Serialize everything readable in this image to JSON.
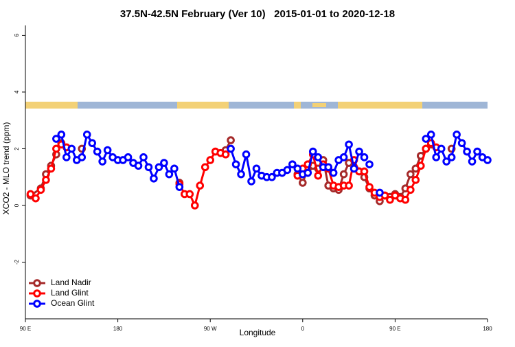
{
  "chart_data": {
    "type": "line",
    "title": "37.5N-42.5N February (Ver 10)   2015-01-01 to 2020-12-18",
    "xlabel": "Longitude",
    "ylabel": "XCO2 - MLO trend (ppm)",
    "xlim": [
      90,
      540
    ],
    "ylim": [
      -4,
      6.35
    ],
    "xticks": [
      {
        "value": 90,
        "label": "90 E"
      },
      {
        "value": 180,
        "label": "180"
      },
      {
        "value": 270,
        "label": "90 W"
      },
      {
        "value": 360,
        "label": "0"
      },
      {
        "value": 450,
        "label": "90 E"
      },
      {
        "value": 540,
        "label": "180"
      }
    ],
    "yticks": [
      -2,
      0,
      2,
      4,
      6
    ],
    "legend": "bottomleft",
    "series": [
      {
        "name": "Land Nadir",
        "color": "#a52a2a",
        "x": [
          95,
          105,
          110,
          115,
          120,
          125,
          135,
          145,
          150,
          240,
          245,
          285,
          290,
          295,
          355,
          360,
          365,
          370,
          375,
          380,
          385,
          390,
          395,
          400,
          405,
          410,
          415,
          420,
          425,
          430,
          435,
          440,
          445,
          450,
          455,
          460,
          465,
          470,
          475,
          480,
          485,
          490,
          505
        ],
        "values": [
          0.35,
          0.6,
          1.1,
          1.4,
          1.8,
          2.2,
          null,
          2.0,
          null,
          0.8,
          null,
          1.95,
          2.3,
          null,
          1.1,
          0.8,
          1.3,
          1.4,
          1.3,
          1.6,
          0.7,
          0.6,
          0.55,
          1.1,
          1.5,
          1.3,
          1.2,
          1.0,
          0.6,
          0.35,
          0.15,
          0.35,
          0.3,
          0.4,
          0.3,
          0.6,
          1.1,
          1.3,
          1.75,
          2.0,
          2.15,
          null,
          2.0
        ]
      },
      {
        "name": "Land Glint",
        "color": "#ff0000",
        "x": [
          95,
          100,
          105,
          110,
          115,
          120,
          125,
          130,
          135,
          240,
          245,
          250,
          255,
          260,
          265,
          270,
          275,
          280,
          285,
          290,
          355,
          360,
          365,
          370,
          375,
          380,
          385,
          390,
          395,
          400,
          405,
          410,
          415,
          420,
          425,
          430,
          435,
          440,
          445,
          450,
          455,
          460,
          465,
          470,
          475,
          480,
          485,
          490
        ],
        "values": [
          0.4,
          0.25,
          0.55,
          0.9,
          1.3,
          2.0,
          2.15,
          2.05,
          null,
          0.75,
          0.4,
          0.4,
          0.0,
          0.7,
          1.35,
          1.6,
          1.9,
          1.85,
          1.8,
          null,
          1.05,
          1.3,
          1.45,
          1.8,
          1.05,
          1.45,
          1.3,
          0.7,
          0.65,
          0.7,
          0.7,
          1.6,
          1.2,
          1.2,
          0.65,
          0.45,
          0.3,
          0.35,
          0.2,
          0.35,
          0.25,
          0.2,
          0.55,
          0.9,
          1.4,
          2.0,
          2.2,
          2.05
        ]
      },
      {
        "name": "Ocean Glint",
        "color": "#0000ff",
        "x": [
          120,
          125,
          130,
          135,
          140,
          145,
          150,
          155,
          160,
          165,
          170,
          175,
          180,
          185,
          190,
          195,
          200,
          205,
          210,
          215,
          220,
          225,
          230,
          235,
          240,
          245,
          290,
          295,
          300,
          305,
          310,
          315,
          320,
          325,
          330,
          335,
          340,
          345,
          350,
          355,
          360,
          365,
          370,
          375,
          380,
          385,
          390,
          395,
          400,
          405,
          410,
          415,
          420,
          422,
          425,
          430,
          435,
          440,
          480,
          485,
          490,
          495,
          500,
          505,
          510,
          515,
          520,
          525,
          530,
          535,
          540
        ],
        "values": [
          2.35,
          2.5,
          1.7,
          2.0,
          1.6,
          1.7,
          2.5,
          2.2,
          1.9,
          1.55,
          1.95,
          1.7,
          1.6,
          1.6,
          1.7,
          1.5,
          1.4,
          1.7,
          1.35,
          0.95,
          1.35,
          1.5,
          1.1,
          1.3,
          0.65,
          null,
          2.0,
          1.45,
          1.1,
          1.8,
          0.85,
          1.3,
          1.05,
          1.0,
          1.0,
          1.15,
          1.15,
          1.25,
          1.45,
          1.3,
          1.1,
          1.15,
          1.9,
          1.7,
          1.35,
          1.35,
          1.15,
          1.6,
          1.7,
          2.15,
          1.3,
          1.9,
          1.7,
          null,
          1.45,
          null,
          0.45,
          null,
          2.35,
          2.5,
          1.7,
          2.0,
          1.55,
          1.7,
          2.5,
          2.2,
          1.9,
          1.55,
          1.9,
          1.7,
          1.6
        ]
      }
    ]
  }
}
